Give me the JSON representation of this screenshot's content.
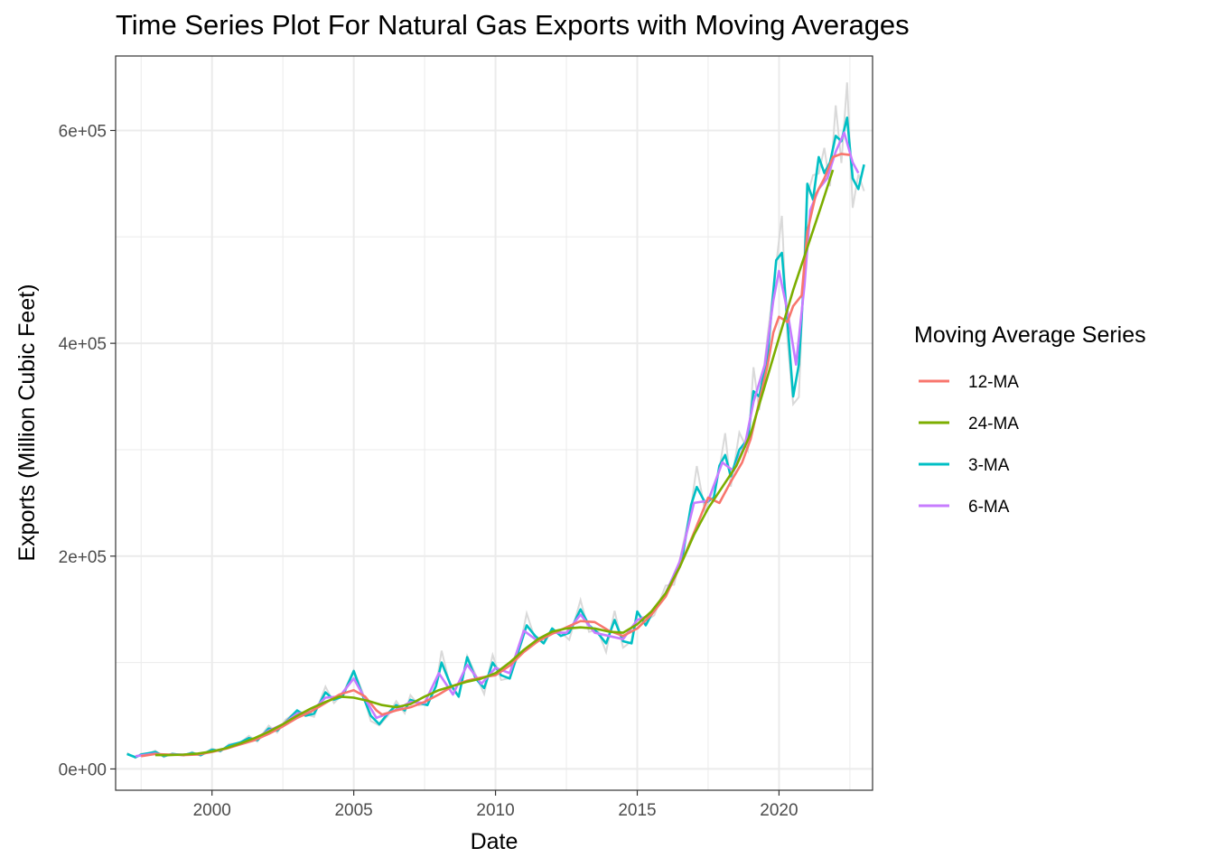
{
  "chart_data": {
    "type": "line",
    "title": "Time Series Plot For Natural Gas Exports with Moving Averages",
    "xlabel": "Date",
    "ylabel": "Exports (Million Cubic Feet)",
    "xlim": [
      1996.6,
      2023.3
    ],
    "ylim": [
      -20000,
      670000
    ],
    "x_ticks": [
      2000,
      2005,
      2010,
      2015,
      2020
    ],
    "x_tick_labels": [
      "2000",
      "2005",
      "2010",
      "2015",
      "2020"
    ],
    "y_ticks": [
      0,
      200000,
      400000,
      600000
    ],
    "y_tick_labels": [
      "0e+00",
      "2e+05",
      "4e+05",
      "6e+05"
    ],
    "grid": true,
    "legend": {
      "title": "Moving Average Series",
      "placement": "right"
    },
    "raw_series_color": "#d9d9d9",
    "series": [
      {
        "name": "12-MA",
        "color": "#F8766D",
        "points": [
          [
            1997.5,
            12000
          ],
          [
            1998.0,
            14000
          ],
          [
            1998.5,
            13500
          ],
          [
            1999.0,
            13000
          ],
          [
            1999.5,
            13500
          ],
          [
            2000.0,
            16000
          ],
          [
            2000.5,
            19000
          ],
          [
            2001.0,
            23000
          ],
          [
            2001.5,
            27000
          ],
          [
            2002.0,
            33000
          ],
          [
            2002.5,
            40000
          ],
          [
            2003.0,
            48000
          ],
          [
            2003.5,
            54000
          ],
          [
            2004.0,
            62000
          ],
          [
            2004.5,
            70000
          ],
          [
            2005.0,
            74000
          ],
          [
            2005.4,
            68000
          ],
          [
            2005.8,
            55000
          ],
          [
            2006.0,
            51000
          ],
          [
            2006.5,
            55000
          ],
          [
            2007.0,
            58000
          ],
          [
            2007.5,
            63000
          ],
          [
            2008.0,
            70000
          ],
          [
            2008.5,
            78000
          ],
          [
            2009.0,
            83000
          ],
          [
            2009.5,
            86000
          ],
          [
            2010.0,
            88000
          ],
          [
            2010.5,
            97000
          ],
          [
            2011.0,
            110000
          ],
          [
            2011.5,
            120000
          ],
          [
            2012.0,
            127000
          ],
          [
            2012.5,
            133000
          ],
          [
            2013.0,
            139000
          ],
          [
            2013.5,
            138000
          ],
          [
            2014.0,
            130000
          ],
          [
            2014.5,
            125000
          ],
          [
            2015.0,
            132000
          ],
          [
            2015.5,
            145000
          ],
          [
            2016.0,
            162000
          ],
          [
            2016.5,
            190000
          ],
          [
            2017.0,
            222000
          ],
          [
            2017.5,
            255000
          ],
          [
            2017.9,
            250000
          ],
          [
            2018.3,
            270000
          ],
          [
            2018.7,
            288000
          ],
          [
            2019.0,
            310000
          ],
          [
            2019.3,
            345000
          ],
          [
            2019.6,
            380000
          ],
          [
            2019.8,
            410000
          ],
          [
            2020.0,
            425000
          ],
          [
            2020.3,
            420000
          ],
          [
            2020.5,
            435000
          ],
          [
            2020.8,
            445000
          ],
          [
            2021.0,
            505000
          ],
          [
            2021.3,
            540000
          ],
          [
            2021.6,
            555000
          ],
          [
            2021.9,
            575000
          ],
          [
            2022.2,
            578000
          ],
          [
            2022.5,
            577000
          ]
        ]
      },
      {
        "name": "24-MA",
        "color": "#7CAE00",
        "points": [
          [
            1998.0,
            13000
          ],
          [
            1998.5,
            13000
          ],
          [
            1999.0,
            13500
          ],
          [
            1999.5,
            14500
          ],
          [
            2000.0,
            16500
          ],
          [
            2000.5,
            19500
          ],
          [
            2001.0,
            24000
          ],
          [
            2001.5,
            29000
          ],
          [
            2002.0,
            35000
          ],
          [
            2002.5,
            42000
          ],
          [
            2003.0,
            50000
          ],
          [
            2003.5,
            57000
          ],
          [
            2004.0,
            63000
          ],
          [
            2004.5,
            68000
          ],
          [
            2005.0,
            67000
          ],
          [
            2005.5,
            64000
          ],
          [
            2006.0,
            60000
          ],
          [
            2006.5,
            58000
          ],
          [
            2007.0,
            61000
          ],
          [
            2007.5,
            68000
          ],
          [
            2008.0,
            74000
          ],
          [
            2008.5,
            78000
          ],
          [
            2009.0,
            82000
          ],
          [
            2009.5,
            85000
          ],
          [
            2010.0,
            90000
          ],
          [
            2010.5,
            100000
          ],
          [
            2011.0,
            112000
          ],
          [
            2011.5,
            122000
          ],
          [
            2012.0,
            129000
          ],
          [
            2012.5,
            132000
          ],
          [
            2013.0,
            133000
          ],
          [
            2013.5,
            132000
          ],
          [
            2014.0,
            129000
          ],
          [
            2014.5,
            128000
          ],
          [
            2015.0,
            136000
          ],
          [
            2015.5,
            148000
          ],
          [
            2016.0,
            165000
          ],
          [
            2016.5,
            190000
          ],
          [
            2017.0,
            220000
          ],
          [
            2017.5,
            245000
          ],
          [
            2018.0,
            265000
          ],
          [
            2018.5,
            285000
          ],
          [
            2019.0,
            315000
          ],
          [
            2019.5,
            360000
          ],
          [
            2020.0,
            405000
          ],
          [
            2020.5,
            450000
          ],
          [
            2021.0,
            490000
          ],
          [
            2021.5,
            530000
          ],
          [
            2021.9,
            563000
          ]
        ]
      },
      {
        "name": "3-MA",
        "color": "#00BFC4",
        "points": [
          [
            1997.0,
            14000
          ],
          [
            1997.3,
            11000
          ],
          [
            1997.5,
            13500
          ],
          [
            1997.8,
            15000
          ],
          [
            1998.0,
            16000
          ],
          [
            1998.3,
            12000
          ],
          [
            1998.6,
            14000
          ],
          [
            1999.0,
            13000
          ],
          [
            1999.3,
            15000
          ],
          [
            1999.6,
            13000
          ],
          [
            2000.0,
            18000
          ],
          [
            2000.3,
            17000
          ],
          [
            2000.6,
            22000
          ],
          [
            2001.0,
            25000
          ],
          [
            2001.3,
            29000
          ],
          [
            2001.6,
            27000
          ],
          [
            2002.0,
            38000
          ],
          [
            2002.3,
            36000
          ],
          [
            2002.6,
            44000
          ],
          [
            2003.0,
            55000
          ],
          [
            2003.3,
            50000
          ],
          [
            2003.6,
            52000
          ],
          [
            2004.0,
            72000
          ],
          [
            2004.3,
            65000
          ],
          [
            2004.6,
            68000
          ],
          [
            2005.0,
            92000
          ],
          [
            2005.3,
            70000
          ],
          [
            2005.6,
            50000
          ],
          [
            2005.9,
            42000
          ],
          [
            2006.2,
            52000
          ],
          [
            2006.5,
            60000
          ],
          [
            2006.8,
            55000
          ],
          [
            2007.0,
            65000
          ],
          [
            2007.3,
            62000
          ],
          [
            2007.6,
            60000
          ],
          [
            2007.9,
            78000
          ],
          [
            2008.1,
            100000
          ],
          [
            2008.4,
            80000
          ],
          [
            2008.7,
            68000
          ],
          [
            2009.0,
            105000
          ],
          [
            2009.3,
            85000
          ],
          [
            2009.6,
            76000
          ],
          [
            2009.9,
            100000
          ],
          [
            2010.2,
            88000
          ],
          [
            2010.5,
            85000
          ],
          [
            2010.8,
            110000
          ],
          [
            2011.1,
            135000
          ],
          [
            2011.4,
            125000
          ],
          [
            2011.7,
            118000
          ],
          [
            2012.0,
            132000
          ],
          [
            2012.3,
            125000
          ],
          [
            2012.6,
            128000
          ],
          [
            2013.0,
            150000
          ],
          [
            2013.3,
            135000
          ],
          [
            2013.6,
            128000
          ],
          [
            2013.9,
            118000
          ],
          [
            2014.2,
            140000
          ],
          [
            2014.5,
            120000
          ],
          [
            2014.8,
            118000
          ],
          [
            2015.0,
            148000
          ],
          [
            2015.3,
            135000
          ],
          [
            2015.6,
            150000
          ],
          [
            2016.0,
            165000
          ],
          [
            2016.3,
            180000
          ],
          [
            2016.6,
            200000
          ],
          [
            2016.9,
            248000
          ],
          [
            2017.1,
            265000
          ],
          [
            2017.4,
            250000
          ],
          [
            2017.7,
            255000
          ],
          [
            2017.9,
            285000
          ],
          [
            2018.1,
            295000
          ],
          [
            2018.3,
            275000
          ],
          [
            2018.6,
            300000
          ],
          [
            2018.9,
            310000
          ],
          [
            2019.1,
            355000
          ],
          [
            2019.3,
            350000
          ],
          [
            2019.6,
            390000
          ],
          [
            2019.9,
            478000
          ],
          [
            2020.1,
            485000
          ],
          [
            2020.3,
            420000
          ],
          [
            2020.5,
            350000
          ],
          [
            2020.7,
            380000
          ],
          [
            2020.9,
            470000
          ],
          [
            2021.0,
            550000
          ],
          [
            2021.2,
            535000
          ],
          [
            2021.4,
            575000
          ],
          [
            2021.6,
            560000
          ],
          [
            2021.8,
            570000
          ],
          [
            2022.0,
            595000
          ],
          [
            2022.2,
            590000
          ],
          [
            2022.4,
            612000
          ],
          [
            2022.6,
            555000
          ],
          [
            2022.8,
            545000
          ],
          [
            2023.0,
            568000
          ]
        ]
      },
      {
        "name": "6-MA",
        "color": "#C77CFF",
        "points": [
          [
            1997.3,
            12000
          ],
          [
            1997.6,
            13000
          ],
          [
            1998.0,
            14500
          ],
          [
            1998.3,
            13000
          ],
          [
            1998.6,
            13500
          ],
          [
            1999.0,
            13500
          ],
          [
            1999.3,
            14000
          ],
          [
            1999.6,
            14500
          ],
          [
            2000.0,
            16500
          ],
          [
            2000.5,
            19500
          ],
          [
            2001.0,
            24000
          ],
          [
            2001.5,
            28000
          ],
          [
            2002.0,
            36000
          ],
          [
            2002.5,
            42000
          ],
          [
            2003.0,
            52000
          ],
          [
            2003.5,
            54000
          ],
          [
            2004.0,
            67000
          ],
          [
            2004.5,
            68000
          ],
          [
            2005.0,
            85000
          ],
          [
            2005.4,
            66000
          ],
          [
            2005.8,
            48000
          ],
          [
            2006.2,
            52000
          ],
          [
            2006.6,
            57000
          ],
          [
            2007.0,
            63000
          ],
          [
            2007.5,
            62000
          ],
          [
            2008.0,
            90000
          ],
          [
            2008.5,
            70000
          ],
          [
            2009.0,
            98000
          ],
          [
            2009.5,
            80000
          ],
          [
            2010.0,
            95000
          ],
          [
            2010.5,
            90000
          ],
          [
            2011.0,
            130000
          ],
          [
            2011.5,
            120000
          ],
          [
            2012.0,
            128000
          ],
          [
            2012.5,
            128000
          ],
          [
            2013.0,
            145000
          ],
          [
            2013.5,
            128000
          ],
          [
            2014.0,
            125000
          ],
          [
            2014.5,
            122000
          ],
          [
            2015.0,
            140000
          ],
          [
            2015.5,
            145000
          ],
          [
            2016.0,
            165000
          ],
          [
            2016.5,
            195000
          ],
          [
            2017.0,
            250000
          ],
          [
            2017.5,
            252000
          ],
          [
            2018.0,
            288000
          ],
          [
            2018.4,
            280000
          ],
          [
            2018.8,
            305000
          ],
          [
            2019.1,
            345000
          ],
          [
            2019.5,
            380000
          ],
          [
            2019.8,
            440000
          ],
          [
            2020.0,
            468000
          ],
          [
            2020.3,
            430000
          ],
          [
            2020.6,
            380000
          ],
          [
            2020.9,
            455000
          ],
          [
            2021.1,
            525000
          ],
          [
            2021.4,
            545000
          ],
          [
            2021.7,
            555000
          ],
          [
            2022.0,
            580000
          ],
          [
            2022.3,
            598000
          ],
          [
            2022.6,
            570000
          ],
          [
            2022.8,
            560000
          ]
        ]
      }
    ]
  }
}
